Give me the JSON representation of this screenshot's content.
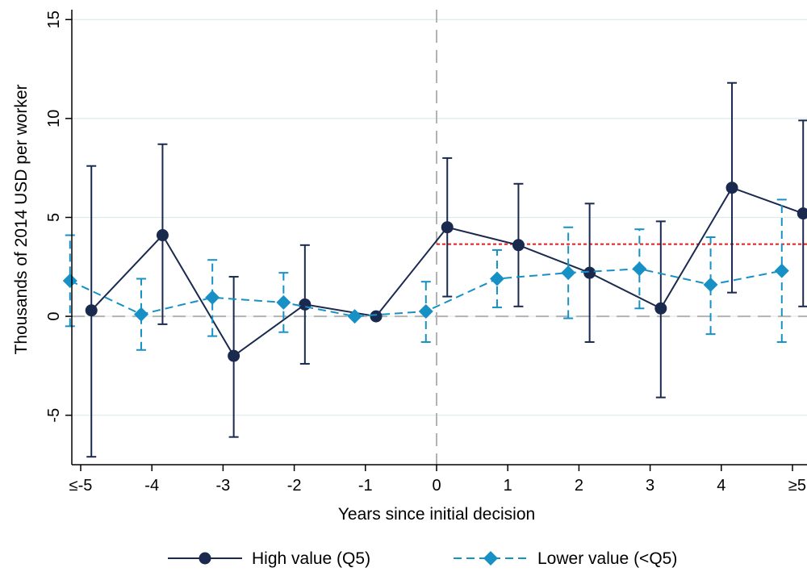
{
  "chart_data": {
    "type": "line",
    "title": "",
    "xlabel": "Years since initial decision",
    "ylabel": "Thousands of 2014 USD per worker",
    "x_categories": [
      "≤-5",
      "-4",
      "-3",
      "-2",
      "-1",
      "0",
      "1",
      "2",
      "3",
      "4",
      "≥5"
    ],
    "x_ticks": [
      -5,
      -4,
      -3,
      -2,
      -1,
      0,
      1,
      2,
      3,
      4,
      5
    ],
    "ylim": [
      -7.5,
      15.5
    ],
    "y_ticks": [
      -5,
      0,
      5,
      10,
      15
    ],
    "y_tick_labels": [
      "-5",
      "0",
      "5",
      "10",
      "15"
    ],
    "grid": "horizontal",
    "legend_position": "bottom",
    "reference_lines": {
      "vertical_x": 0,
      "horizontal_y": 0,
      "post_mean": {
        "y": 3.65,
        "x_from": 0,
        "x_to": 5.5,
        "color": "#e41a1c"
      }
    },
    "series": [
      {
        "name": "High value (Q5)",
        "color": "#1a2a4f",
        "marker": "circle",
        "line_style": "solid",
        "x": [
          -4.85,
          -3.85,
          -2.85,
          -1.85,
          -0.85,
          0.15,
          1.15,
          2.15,
          3.15,
          4.15,
          5.15
        ],
        "values": [
          0.3,
          4.1,
          -2.0,
          0.6,
          0.0,
          4.5,
          3.6,
          2.2,
          0.4,
          6.5,
          5.2
        ],
        "ci_lower": [
          -7.1,
          -0.4,
          -6.1,
          -2.4,
          0.0,
          1.0,
          0.5,
          -1.3,
          -4.1,
          1.2,
          0.5
        ],
        "ci_upper": [
          7.6,
          8.7,
          2.0,
          3.6,
          0.0,
          8.0,
          6.7,
          5.7,
          4.8,
          11.8,
          9.9
        ]
      },
      {
        "name": "Lower value (<Q5)",
        "color": "#1791c5",
        "marker": "diamond",
        "line_style": "dashed",
        "x": [
          -5.15,
          -4.15,
          -3.15,
          -2.15,
          -1.15,
          -0.15,
          0.85,
          1.85,
          2.85,
          3.85,
          4.85
        ],
        "values": [
          1.8,
          0.1,
          0.95,
          0.7,
          0.0,
          0.25,
          1.9,
          2.2,
          2.4,
          1.6,
          2.3
        ],
        "ci_lower": [
          -0.5,
          -1.7,
          -1.0,
          -0.8,
          0.0,
          -1.3,
          0.45,
          -0.1,
          0.4,
          -0.9,
          -1.3
        ],
        "ci_upper": [
          4.1,
          1.9,
          2.85,
          2.2,
          0.0,
          1.75,
          3.35,
          4.5,
          4.4,
          4.0,
          5.9
        ]
      }
    ]
  }
}
